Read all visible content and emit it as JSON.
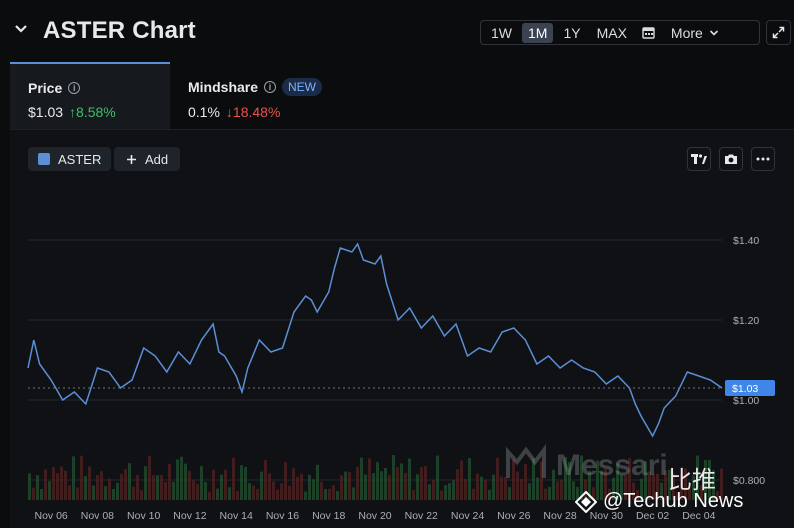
{
  "header": {
    "title": "ASTER Chart",
    "ranges": [
      "1W",
      "1M",
      "1Y",
      "MAX"
    ],
    "active_range": "1M",
    "more_label": "More"
  },
  "metrics": {
    "price": {
      "label": "Price",
      "value": "$1.03",
      "change": "8.58%",
      "direction": "up"
    },
    "mindshare": {
      "label": "Mindshare",
      "badge": "NEW",
      "value": "0.1%",
      "change": "18.48%",
      "direction": "down"
    }
  },
  "series_chip": {
    "label": "ASTER",
    "color": "#5b8fd6"
  },
  "add_label": "Add",
  "watermark": {
    "brand": "Messari",
    "cn": "比推",
    "text": "@Techub News"
  },
  "chart_data": {
    "type": "line",
    "series": [
      {
        "name": "ASTER",
        "color": "#5b8fd6"
      }
    ],
    "x_ticks": [
      "Nov 06",
      "Nov 08",
      "Nov 10",
      "Nov 12",
      "Nov 14",
      "Nov 16",
      "Nov 18",
      "Nov 20",
      "Nov 22",
      "Nov 24",
      "Nov 26",
      "Nov 28",
      "Nov 30",
      "Dec 02",
      "Dec 04"
    ],
    "y_ticks": [
      "$1.40",
      "$1.20",
      "$1.00",
      "$0.800"
    ],
    "ylim": [
      0.8,
      1.4
    ],
    "current_value_label": "$1.03",
    "current_value": 1.03,
    "x_range": [
      "Nov 05",
      "Dec 05"
    ],
    "points": [
      [
        "Nov 05",
        1.08
      ],
      [
        "Nov 05 06:00",
        1.15
      ],
      [
        "Nov 05 12:00",
        1.09
      ],
      [
        "Nov 06",
        1.05
      ],
      [
        "Nov 06 12:00",
        1.0
      ],
      [
        "Nov 07",
        1.02
      ],
      [
        "Nov 07 12:00",
        0.99
      ],
      [
        "Nov 08",
        1.08
      ],
      [
        "Nov 08 12:00",
        1.07
      ],
      [
        "Nov 09",
        1.03
      ],
      [
        "Nov 09 12:00",
        1.05
      ],
      [
        "Nov 10",
        1.13
      ],
      [
        "Nov 10 12:00",
        1.11
      ],
      [
        "Nov 11",
        1.07
      ],
      [
        "Nov 11 12:00",
        1.12
      ],
      [
        "Nov 12",
        1.09
      ],
      [
        "Nov 12 12:00",
        1.15
      ],
      [
        "Nov 13",
        1.19
      ],
      [
        "Nov 13 06:00",
        1.12
      ],
      [
        "Nov 13 12:00",
        1.11
      ],
      [
        "Nov 14",
        1.06
      ],
      [
        "Nov 14 06:00",
        1.02
      ],
      [
        "Nov 14 12:00",
        1.08
      ],
      [
        "Nov 15",
        1.15
      ],
      [
        "Nov 15 12:00",
        1.12
      ],
      [
        "Nov 16",
        1.13
      ],
      [
        "Nov 16 12:00",
        1.22
      ],
      [
        "Nov 17",
        1.26
      ],
      [
        "Nov 17 06:00",
        1.25
      ],
      [
        "Nov 17 12:00",
        1.22
      ],
      [
        "Nov 18",
        1.27
      ],
      [
        "Nov 18 06:00",
        1.33
      ],
      [
        "Nov 18 12:00",
        1.38
      ],
      [
        "Nov 19",
        1.37
      ],
      [
        "Nov 19 06:00",
        1.39
      ],
      [
        "Nov 19 12:00",
        1.35
      ],
      [
        "Nov 20",
        1.34
      ],
      [
        "Nov 20 06:00",
        1.36
      ],
      [
        "Nov 20 12:00",
        1.29
      ],
      [
        "Nov 21",
        1.2
      ],
      [
        "Nov 21 12:00",
        1.23
      ],
      [
        "Nov 22",
        1.18
      ],
      [
        "Nov 22 12:00",
        1.21
      ],
      [
        "Nov 23",
        1.16
      ],
      [
        "Nov 23 12:00",
        1.19
      ],
      [
        "Nov 24",
        1.11
      ],
      [
        "Nov 24 12:00",
        1.13
      ],
      [
        "Nov 25",
        1.12
      ],
      [
        "Nov 25 12:00",
        1.17
      ],
      [
        "Nov 26",
        1.18
      ],
      [
        "Nov 26 12:00",
        1.15
      ],
      [
        "Nov 27",
        1.09
      ],
      [
        "Nov 27 12:00",
        1.11
      ],
      [
        "Nov 28",
        1.08
      ],
      [
        "Nov 28 12:00",
        1.1
      ],
      [
        "Nov 29",
        1.08
      ],
      [
        "Nov 29 12:00",
        1.07
      ],
      [
        "Nov 30",
        1.04
      ],
      [
        "Nov 30 12:00",
        1.06
      ],
      [
        "Dec 01",
        1.03
      ],
      [
        "Dec 01 06:00",
        0.99
      ],
      [
        "Dec 01 12:00",
        0.96
      ],
      [
        "Dec 02",
        0.91
      ],
      [
        "Dec 02 06:00",
        0.94
      ],
      [
        "Dec 02 12:00",
        0.98
      ],
      [
        "Dec 03",
        1.01
      ],
      [
        "Dec 03 12:00",
        1.07
      ],
      [
        "Dec 04",
        1.06
      ],
      [
        "Dec 04 12:00",
        1.05
      ],
      [
        "Dec 05",
        1.03
      ]
    ],
    "volume_bars": "green/red bars along bottom, unlabeled"
  }
}
